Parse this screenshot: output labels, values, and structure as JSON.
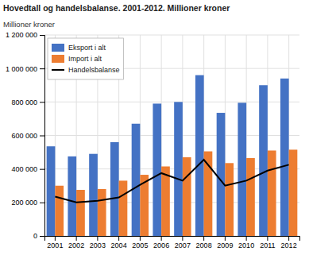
{
  "chart_data": {
    "type": "bar",
    "title": "Hovedtall og handelsbalanse. 2001-2012. Millioner kroner",
    "y_label": "Millioner kroner",
    "categories": [
      "2001",
      "2002",
      "2003",
      "2004",
      "2005",
      "2006",
      "2007",
      "2008",
      "2009",
      "2010",
      "2011",
      "2012"
    ],
    "series": [
      {
        "name": "Eksport i alt",
        "type": "bar",
        "color": "#4472C4",
        "values": [
          535000,
          475000,
          490000,
          560000,
          670000,
          790000,
          800000,
          960000,
          735000,
          795000,
          900000,
          940000
        ]
      },
      {
        "name": "Import i alt",
        "type": "bar",
        "color": "#ED7D31",
        "values": [
          300000,
          275000,
          280000,
          330000,
          365000,
          415000,
          470000,
          505000,
          435000,
          465000,
          510000,
          515000
        ]
      },
      {
        "name": "Handelsbalanse",
        "type": "line",
        "color": "#000000",
        "values": [
          235000,
          200000,
          210000,
          230000,
          305000,
          375000,
          330000,
          455000,
          300000,
          330000,
          390000,
          425000
        ]
      }
    ],
    "ylim": [
      0,
      1200000
    ],
    "yticks": [
      0,
      {
        "value": 200000,
        "label": "200 000"
      },
      {
        "value": 400000,
        "label": "400 000"
      },
      {
        "value": 600000,
        "label": "600 000"
      },
      {
        "value": 800000,
        "label": "800 000"
      },
      {
        "value": 1000000,
        "label": "1 000 000"
      },
      {
        "value": 1200000,
        "label": "1 200 000"
      }
    ],
    "grid": true,
    "legend": "upper left"
  }
}
